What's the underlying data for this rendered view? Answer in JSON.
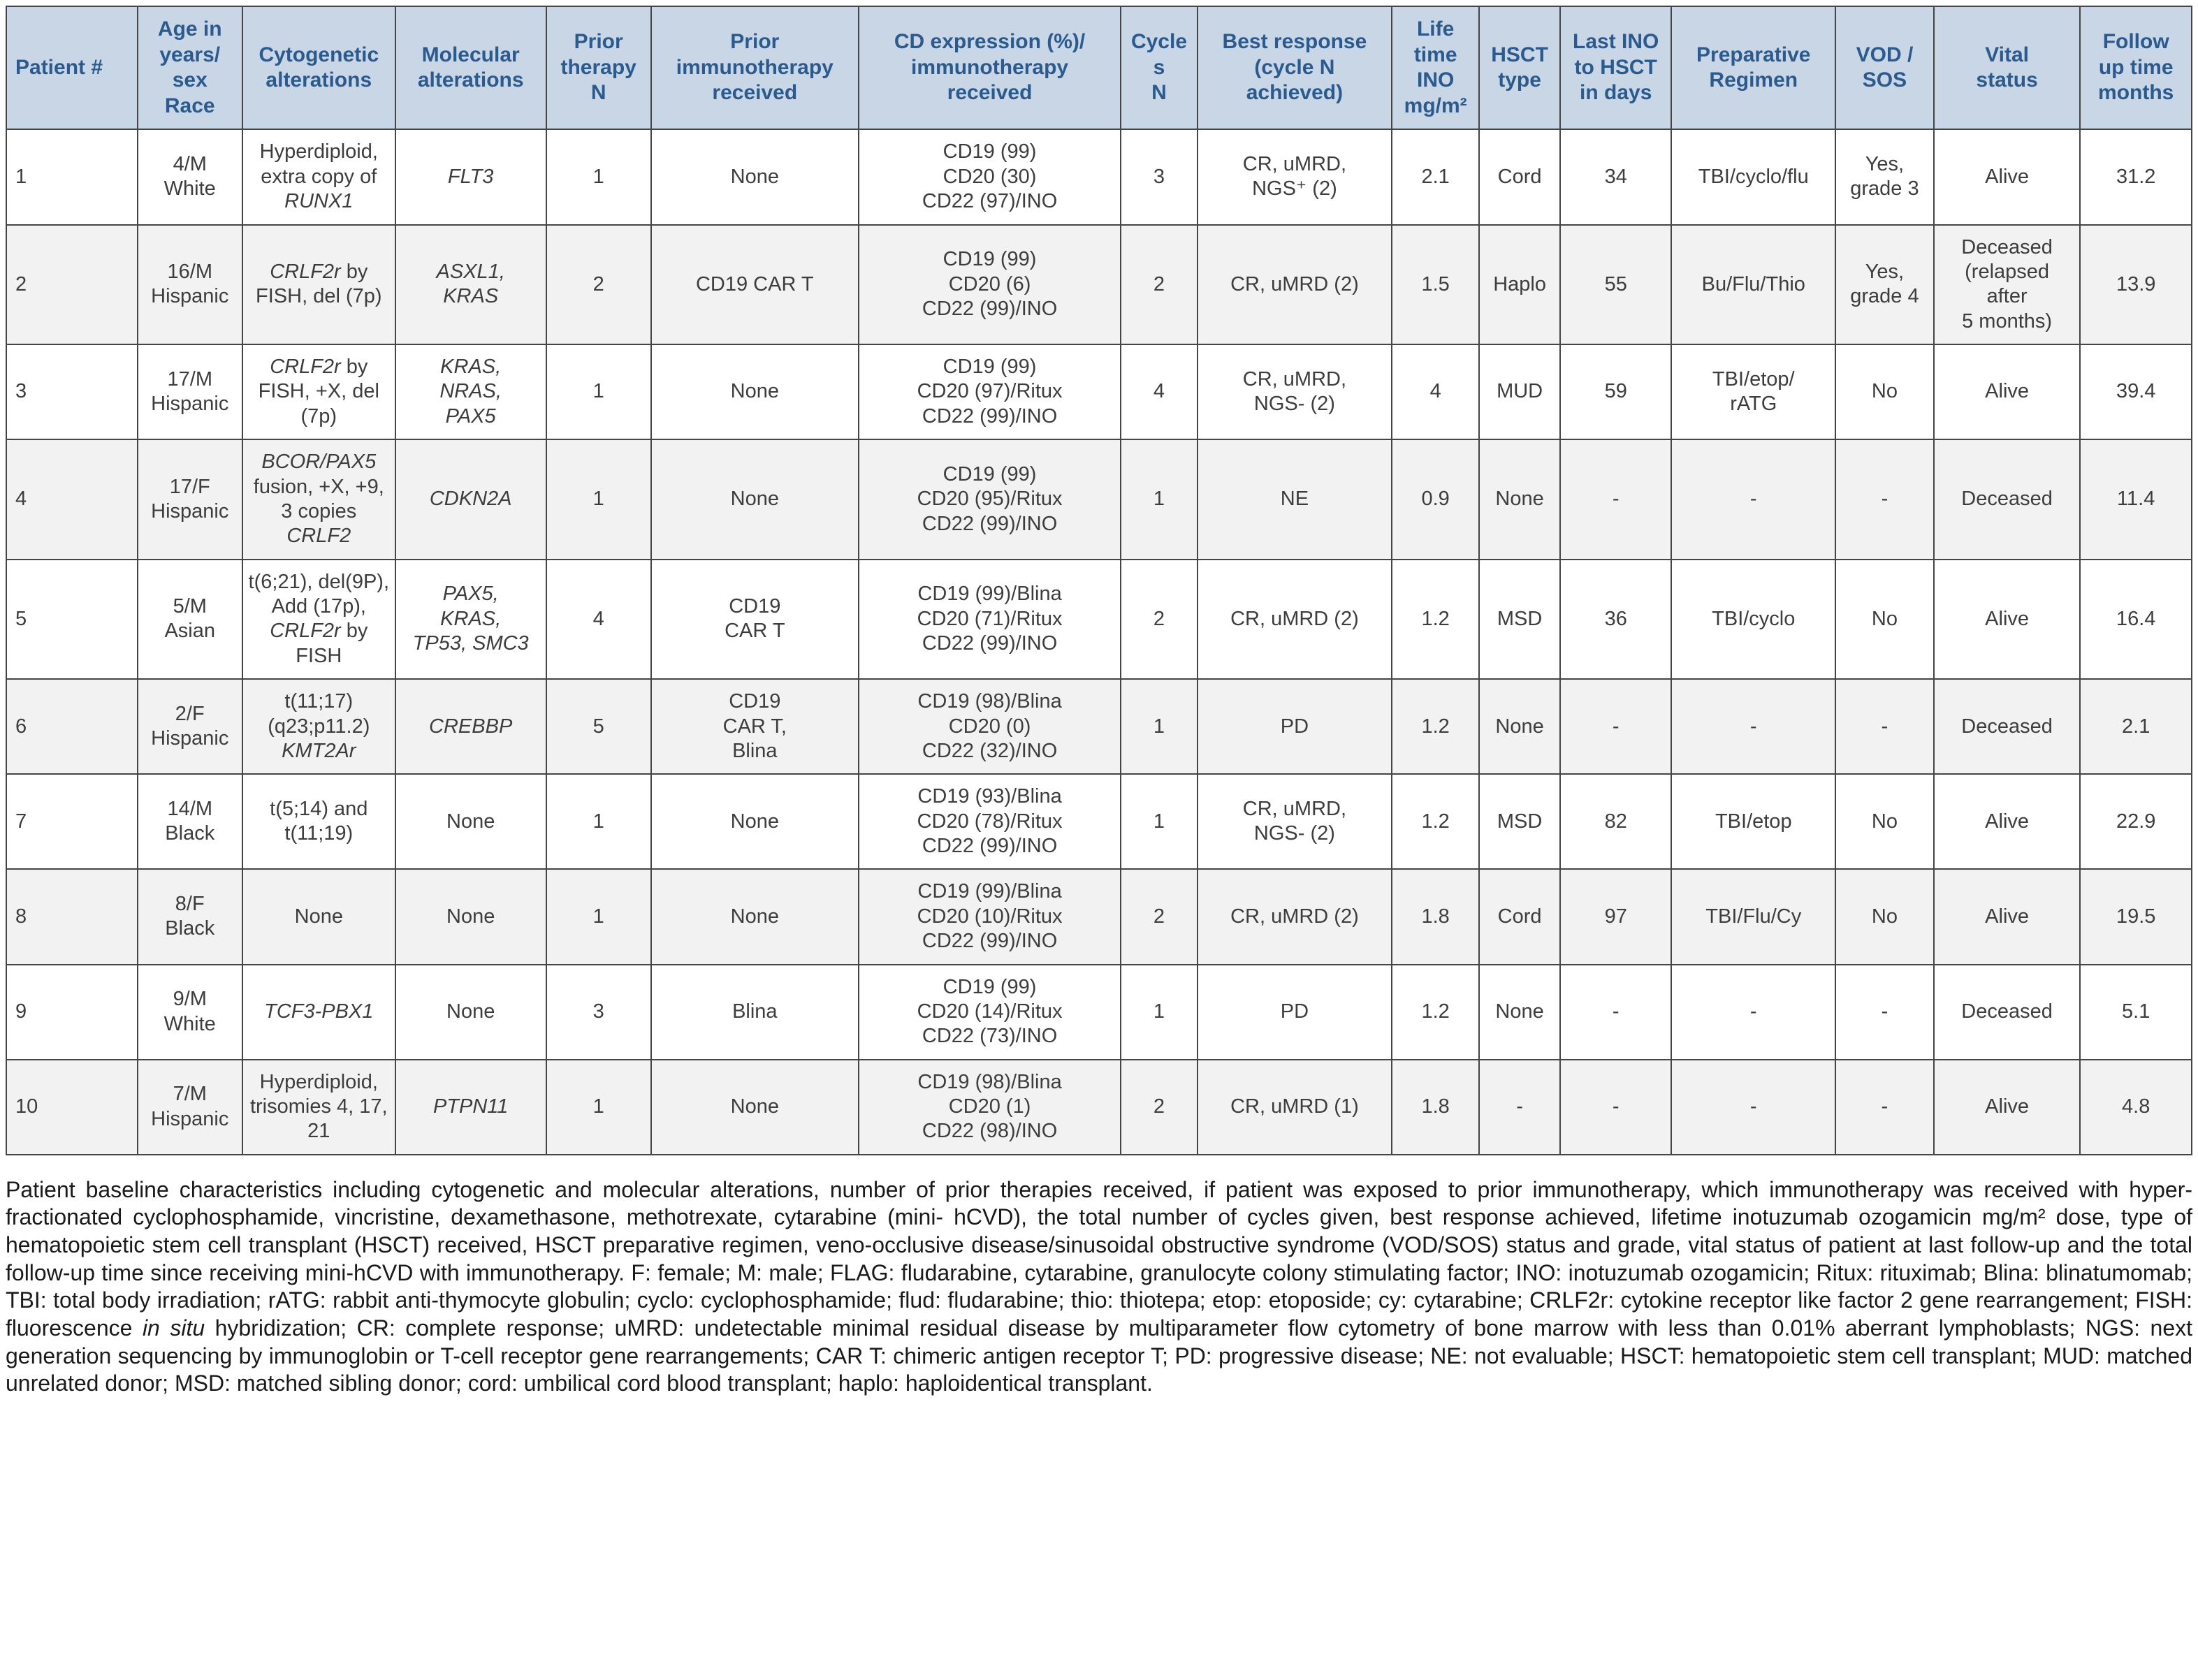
{
  "theme": {
    "header_bg": "#c9d6e6",
    "header_text": "#2b5a8e",
    "row_alt_bg": "#f2f2f2",
    "border_color": "#454545",
    "body_text": "#3d3d3d",
    "caption_text": "#1a1a1a"
  },
  "table": {
    "headers": [
      "Patient #",
      "Age in\nyears/\nsex\nRace",
      "Cytogenetic\nalterations",
      "Molecular\nalterations",
      "Prior\ntherapy\nN",
      "Prior\nimmunotherapy\nreceived",
      "CD expression (%)/\nimmunotherapy\nreceived",
      "Cycles\nN",
      "Best response\n(cycle N\nachieved)",
      "Life\ntime\nINO\nmg/m²",
      "HSCT\ntype",
      "Last INO\nto HSCT\nin days",
      "Preparative\nRegimen",
      "VOD /\nSOS",
      "Vital\nstatus",
      "Follow\nup time\nmonths"
    ],
    "rows": [
      [
        "1",
        "4/M\nWhite",
        [
          [
            "Hyperdiploid, extra copy of ",
            false
          ],
          [
            "RUNX1",
            true
          ]
        ],
        [
          [
            "FLT3",
            true
          ]
        ],
        "1",
        "None",
        "CD19 (99)\nCD20 (30)\nCD22 (97)/INO",
        "3",
        "CR, uMRD,\nNGS⁺ (2)",
        "2.1",
        "Cord",
        "34",
        "TBI/cyclo/flu",
        "Yes,\ngrade 3",
        "Alive",
        "31.2"
      ],
      [
        "2",
        "16/M\nHispanic",
        [
          [
            "CRLF2r",
            true
          ],
          [
            " by FISH, del (7p)",
            false
          ]
        ],
        [
          [
            "ASXL1,\nKRAS",
            true
          ]
        ],
        "2",
        "CD19 CAR T",
        "CD19 (99)\nCD20 (6)\nCD22 (99)/INO",
        "2",
        "CR, uMRD (2)",
        "1.5",
        "Haplo",
        "55",
        "Bu/Flu/Thio",
        "Yes,\ngrade 4",
        "Deceased\n(relapsed\nafter\n5 months)",
        "13.9"
      ],
      [
        "3",
        "17/M\nHispanic",
        [
          [
            "CRLF2r",
            true
          ],
          [
            " by FISH, +X, del (7p)",
            false
          ]
        ],
        [
          [
            "KRAS,\nNRAS,\nPAX5",
            true
          ]
        ],
        "1",
        "None",
        "CD19 (99)\nCD20 (97)/Ritux\nCD22 (99)/INO",
        "4",
        "CR, uMRD,\nNGS- (2)",
        "4",
        "MUD",
        "59",
        "TBI/etop/\nrATG",
        "No",
        "Alive",
        "39.4"
      ],
      [
        "4",
        "17/F\nHispanic",
        [
          [
            "BCOR/PAX5",
            true
          ],
          [
            " fusion, +X, +9, 3 copies ",
            false
          ],
          [
            "CRLF2",
            true
          ]
        ],
        [
          [
            "CDKN2A",
            true
          ]
        ],
        "1",
        "None",
        "CD19 (99)\nCD20 (95)/Ritux\nCD22 (99)/INO",
        "1",
        "NE",
        "0.9",
        "None",
        "-",
        "-",
        "-",
        "Deceased",
        "11.4"
      ],
      [
        "5",
        "5/M\nAsian",
        [
          [
            "t(6;21), del(9P), Add (17p), ",
            false
          ],
          [
            "CRLF2r",
            true
          ],
          [
            " by FISH",
            false
          ]
        ],
        [
          [
            "PAX5,\nKRAS,\nTP53, SMC3",
            true
          ]
        ],
        "4",
        "CD19\nCAR T",
        "CD19 (99)/Blina\nCD20 (71)/Ritux\nCD22 (99)/INO",
        "2",
        "CR, uMRD (2)",
        "1.2",
        "MSD",
        "36",
        "TBI/cyclo",
        "No",
        "Alive",
        "16.4"
      ],
      [
        "6",
        "2/F\nHispanic",
        [
          [
            "t(11;17) (q23;p11.2) ",
            false
          ],
          [
            "KMT2Ar",
            true
          ]
        ],
        [
          [
            "CREBBP",
            true
          ]
        ],
        "5",
        "CD19\nCAR T,\nBlina",
        "CD19 (98)/Blina\nCD20 (0)\nCD22 (32)/INO",
        "1",
        "PD",
        "1.2",
        "None",
        "-",
        "-",
        "-",
        "Deceased",
        "2.1"
      ],
      [
        "7",
        "14/M\nBlack",
        "t(5;14) and t(11;19)",
        "None",
        "1",
        "None",
        "CD19 (93)/Blina\nCD20 (78)/Ritux\nCD22 (99)/INO",
        "1",
        "CR, uMRD,\nNGS- (2)",
        "1.2",
        "MSD",
        "82",
        "TBI/etop",
        "No",
        "Alive",
        "22.9"
      ],
      [
        "8",
        "8/F\nBlack",
        "None",
        "None",
        "1",
        "None",
        "CD19 (99)/Blina\nCD20 (10)/Ritux\nCD22 (99)/INO",
        "2",
        "CR, uMRD (2)",
        "1.8",
        "Cord",
        "97",
        "TBI/Flu/Cy",
        "No",
        "Alive",
        "19.5"
      ],
      [
        "9",
        "9/M\nWhite",
        [
          [
            "TCF3-PBX1",
            true
          ]
        ],
        "None",
        "3",
        "Blina",
        "CD19 (99)\nCD20 (14)/Ritux\nCD22 (73)/INO",
        "1",
        "PD",
        "1.2",
        "None",
        "-",
        "-",
        "-",
        "Deceased",
        "5.1"
      ],
      [
        "10",
        "7/M\nHispanic",
        "Hyperdiploid, trisomies 4, 17, 21",
        [
          [
            "PTPN11",
            true
          ]
        ],
        "1",
        "None",
        "CD19 (98)/Blina\nCD20 (1)\nCD22 (98)/INO",
        "2",
        "CR, uMRD (1)",
        "1.8",
        "-",
        "-",
        "-",
        "-",
        "Alive",
        "4.8"
      ]
    ]
  },
  "caption": {
    "segments": [
      [
        "Patient baseline characteristics including cytogenetic and molecular alterations, number of prior therapies received, if patient was exposed to prior immunotherapy, which immunotherapy was received with hyper-fractionated cyclophosphamide, vincristine, dexamethasone, methotrexate, cytarabine (mini- hCVD), the total number of cycles given, best response achieved, lifetime inotuzumab ozogamicin mg/m² dose, type of hematopoietic stem cell transplant (HSCT) received, HSCT preparative regimen, veno-occlusive disease/sinusoidal obstructive syndrome (VOD/SOS) status and grade, vital status of patient at last follow-up and the total follow-up time since receiving mini-hCVD with immunotherapy. F: female; M: male; FLAG: fludarabine, cytarabine, granulocyte colony stimulating factor; INO: inotuzumab ozogamicin; Ritux: rituximab; Blina: blinatumomab; TBI: total body irradiation; rATG: rabbit anti-thymocyte globulin; cyclo: cyclophosphamide; flud: fludarabine; thio: thiotepa; etop: etoposide; cy: cytarabine; CRLF2r: cytokine receptor like factor 2 gene rearrangement; FISH: fluorescence ",
        false
      ],
      [
        "in situ",
        true
      ],
      [
        " hybridization; CR: complete response; uMRD: undetectable minimal residual disease by multiparameter flow cytometry of bone marrow with less than 0.01% aberrant lymphoblasts; NGS: next generation sequencing by immunoglobin or T-cell receptor gene rearrangements; CAR T: chimeric antigen receptor T; PD: progressive disease; NE: not evaluable; HSCT: hematopoietic stem cell transplant; MUD: matched unrelated donor; MSD: matched sibling donor; cord: umbilical cord blood transplant; haplo: haploidentical transplant.",
        false
      ]
    ]
  }
}
